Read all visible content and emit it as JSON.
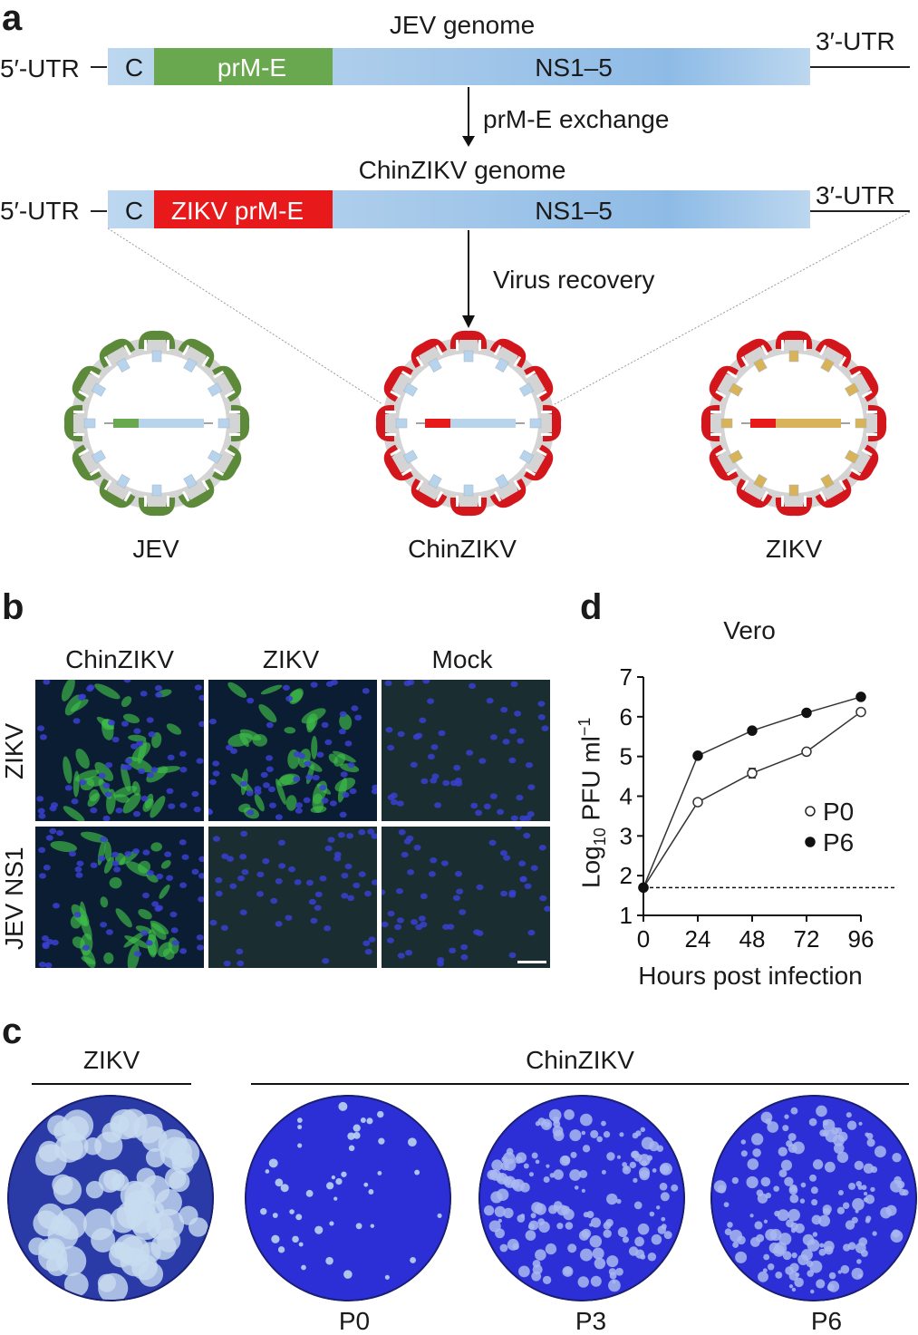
{
  "panels": {
    "a": "a",
    "b": "b",
    "c": "c",
    "d": "d"
  },
  "panel_a": {
    "jev_genome": {
      "title": "JEV genome",
      "utr5": "5′-UTR",
      "utr3": "3′-UTR",
      "c": "C",
      "prm_e": "prM-E",
      "ns": "NS1–5",
      "prm_e_color": "#6aa84f"
    },
    "step1": "prM-E exchange",
    "chin_genome": {
      "title": "ChinZIKV genome",
      "utr5": "5′-UTR",
      "utr3": "3′-UTR",
      "c": "C",
      "prm_e": "ZIKV prM-E",
      "ns": "NS1–5",
      "prm_e_color": "#e8191b"
    },
    "step2": "Virus recovery",
    "virions": [
      {
        "label": "JEV",
        "shell_color": "#5d8a3a",
        "membrane_color": "#b8d3ec",
        "genome_color": "#6aa84f"
      },
      {
        "label": "ChinZIKV",
        "shell_color": "#d3161b",
        "membrane_color": "#b8d3ec",
        "genome_color": "#e8191b"
      },
      {
        "label": "ZIKV",
        "shell_color": "#d3161b",
        "membrane_color": "#d9b35a",
        "genome_color": "#e8191b"
      }
    ]
  },
  "panel_b": {
    "columns": [
      "ChinZIKV",
      "ZIKV",
      "Mock"
    ],
    "rows": [
      "ZIKV",
      "JEV NS1"
    ],
    "images": [
      [
        "strong",
        "strong",
        "none"
      ],
      [
        "strong",
        "none",
        "none"
      ]
    ]
  },
  "panel_c": {
    "group1_label": "ZIKV",
    "group2_label": "ChinZIKV",
    "dishes": [
      {
        "label": "",
        "plaque_density": "confluent"
      },
      {
        "label": "P0",
        "plaque_density": "sparse"
      },
      {
        "label": "P3",
        "plaque_density": "dense"
      },
      {
        "label": "P6",
        "plaque_density": "dense"
      }
    ]
  },
  "chart_data": {
    "type": "line",
    "title": "Vero",
    "xlabel": "Hours post infection",
    "ylabel_parts": {
      "pre": "Log",
      "sub": "10",
      "mid": " PFU ml",
      "sup": "−1"
    },
    "x": [
      0,
      24,
      48,
      72,
      96
    ],
    "x_ticks": [
      "0",
      "24",
      "48",
      "72",
      "96"
    ],
    "y_ticks": [
      "1",
      "2",
      "3",
      "4",
      "5",
      "6",
      "7"
    ],
    "ylim": [
      1,
      7
    ],
    "xlim": [
      0,
      96
    ],
    "detection_limit": 1.7,
    "legend_position": "right",
    "series": [
      {
        "name": "P0",
        "marker": "open-circle",
        "values": [
          1.7,
          3.85,
          4.58,
          5.12,
          6.12
        ],
        "error": [
          0,
          0,
          0.12,
          0,
          0
        ]
      },
      {
        "name": "P6",
        "marker": "filled-circle",
        "values": [
          1.7,
          5.02,
          5.65,
          6.1,
          6.5
        ],
        "error": [
          0,
          0,
          0,
          0,
          0
        ]
      }
    ]
  }
}
